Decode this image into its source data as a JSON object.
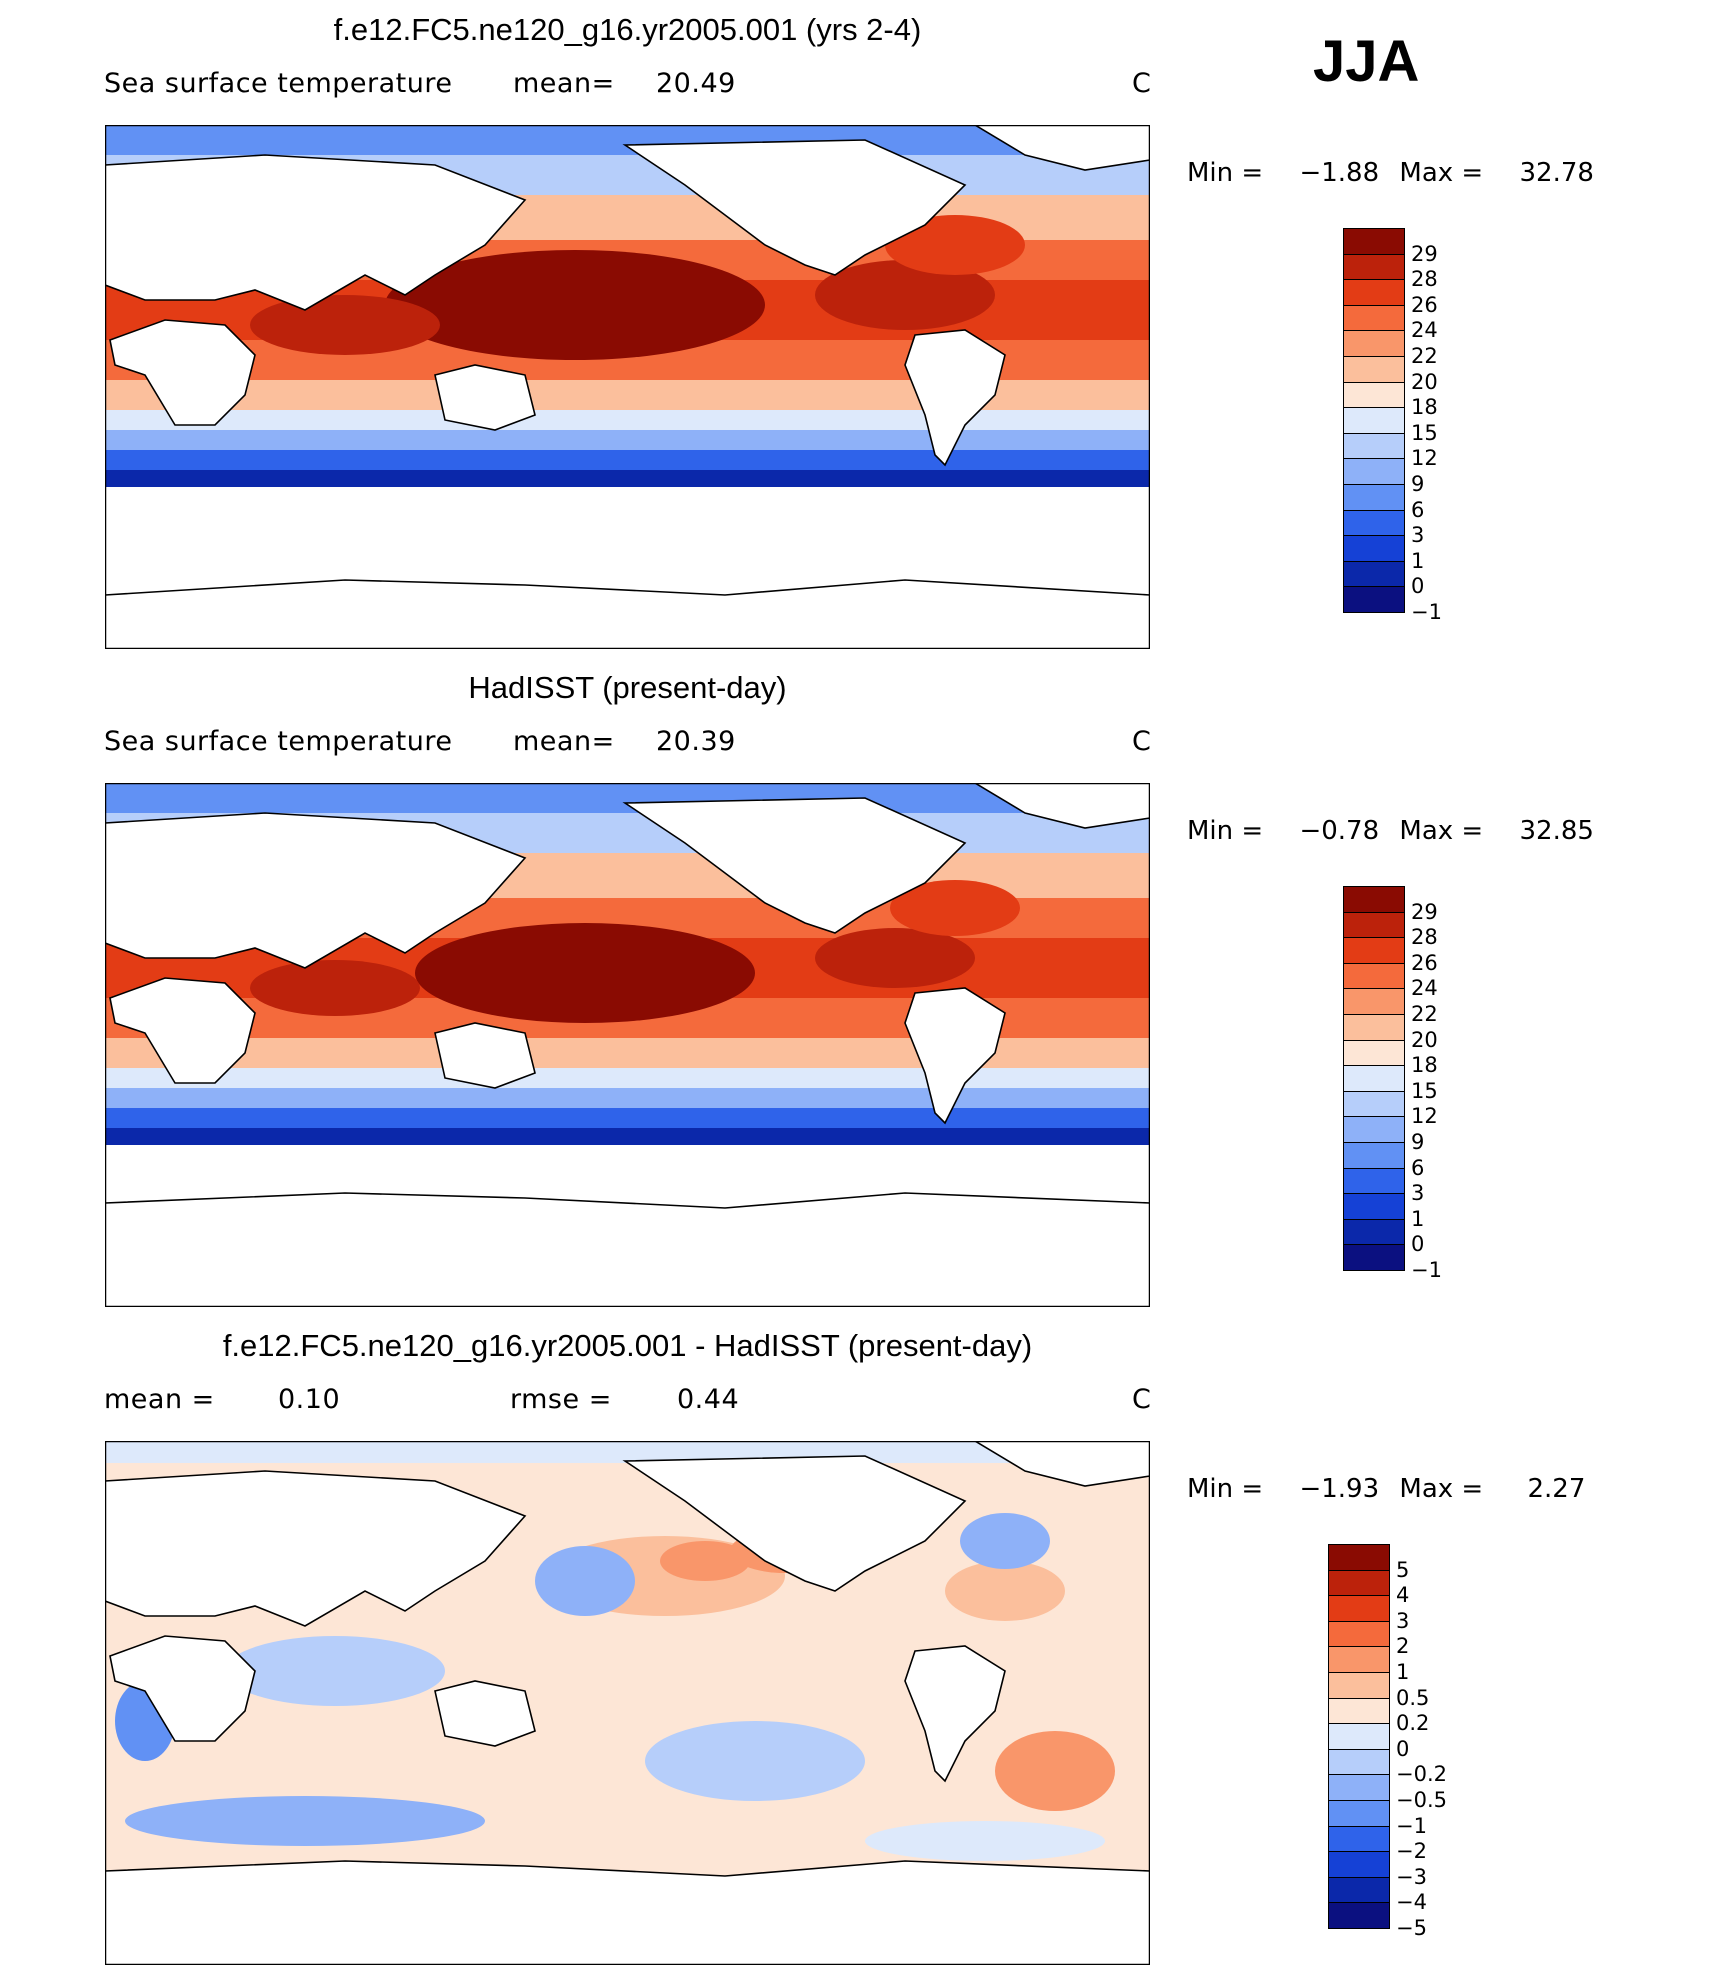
{
  "season": "JJA",
  "colors": {
    "warm": [
      "#fde6d6",
      "#fbbf9c",
      "#f9966a",
      "#f46a3c",
      "#e33c15",
      "#bc220b",
      "#8a0b02"
    ],
    "cool": [
      "#dde9fb",
      "#b6cefa",
      "#8eb1f8",
      "#6191f4",
      "#2f63ea",
      "#1541d6",
      "#0b28aa",
      "#0b1080"
    ],
    "coastline": "#000000",
    "land": "#ffffff"
  },
  "panels": [
    {
      "title": "f.e12.FC5.ne120_g16.yr2005.001 (yrs 2-4)",
      "variable": "Sea surface temperature",
      "stat1_label": "mean=",
      "stat1_value": "20.49",
      "stat2_label": "",
      "stat2_value": "",
      "units": "C",
      "min_label": "Min =",
      "min_value": "−1.88",
      "max_label": "Max =",
      "max_value": "32.78",
      "colorbar_labels": [
        "29",
        "28",
        "26",
        "24",
        "22",
        "20",
        "18",
        "15",
        "12",
        "9",
        "6",
        "3",
        "1",
        "0",
        "−1"
      ]
    },
    {
      "title": "HadISST (present-day)",
      "variable": "Sea surface temperature",
      "stat1_label": "mean=",
      "stat1_value": "20.39",
      "stat2_label": "",
      "stat2_value": "",
      "units": "C",
      "min_label": "Min =",
      "min_value": "−0.78",
      "max_label": "Max =",
      "max_value": "32.85",
      "colorbar_labels": [
        "29",
        "28",
        "26",
        "24",
        "22",
        "20",
        "18",
        "15",
        "12",
        "9",
        "6",
        "3",
        "1",
        "0",
        "−1"
      ]
    },
    {
      "title": "f.e12.FC5.ne120_g16.yr2005.001 - HadISST (present-day)",
      "variable": "",
      "stat1_label": "mean =",
      "stat1_value": "0.10",
      "stat2_label": "rmse =",
      "stat2_value": "0.44",
      "units": "C",
      "min_label": "Min =",
      "min_value": "−1.93",
      "max_label": "Max =",
      "max_value": "2.27",
      "colorbar_labels": [
        "5",
        "4",
        "3",
        "2",
        "1",
        "0.5",
        "0.2",
        "0",
        "−0.2",
        "−0.5",
        "−1",
        "−2",
        "−3",
        "−4",
        "−5"
      ]
    }
  ]
}
